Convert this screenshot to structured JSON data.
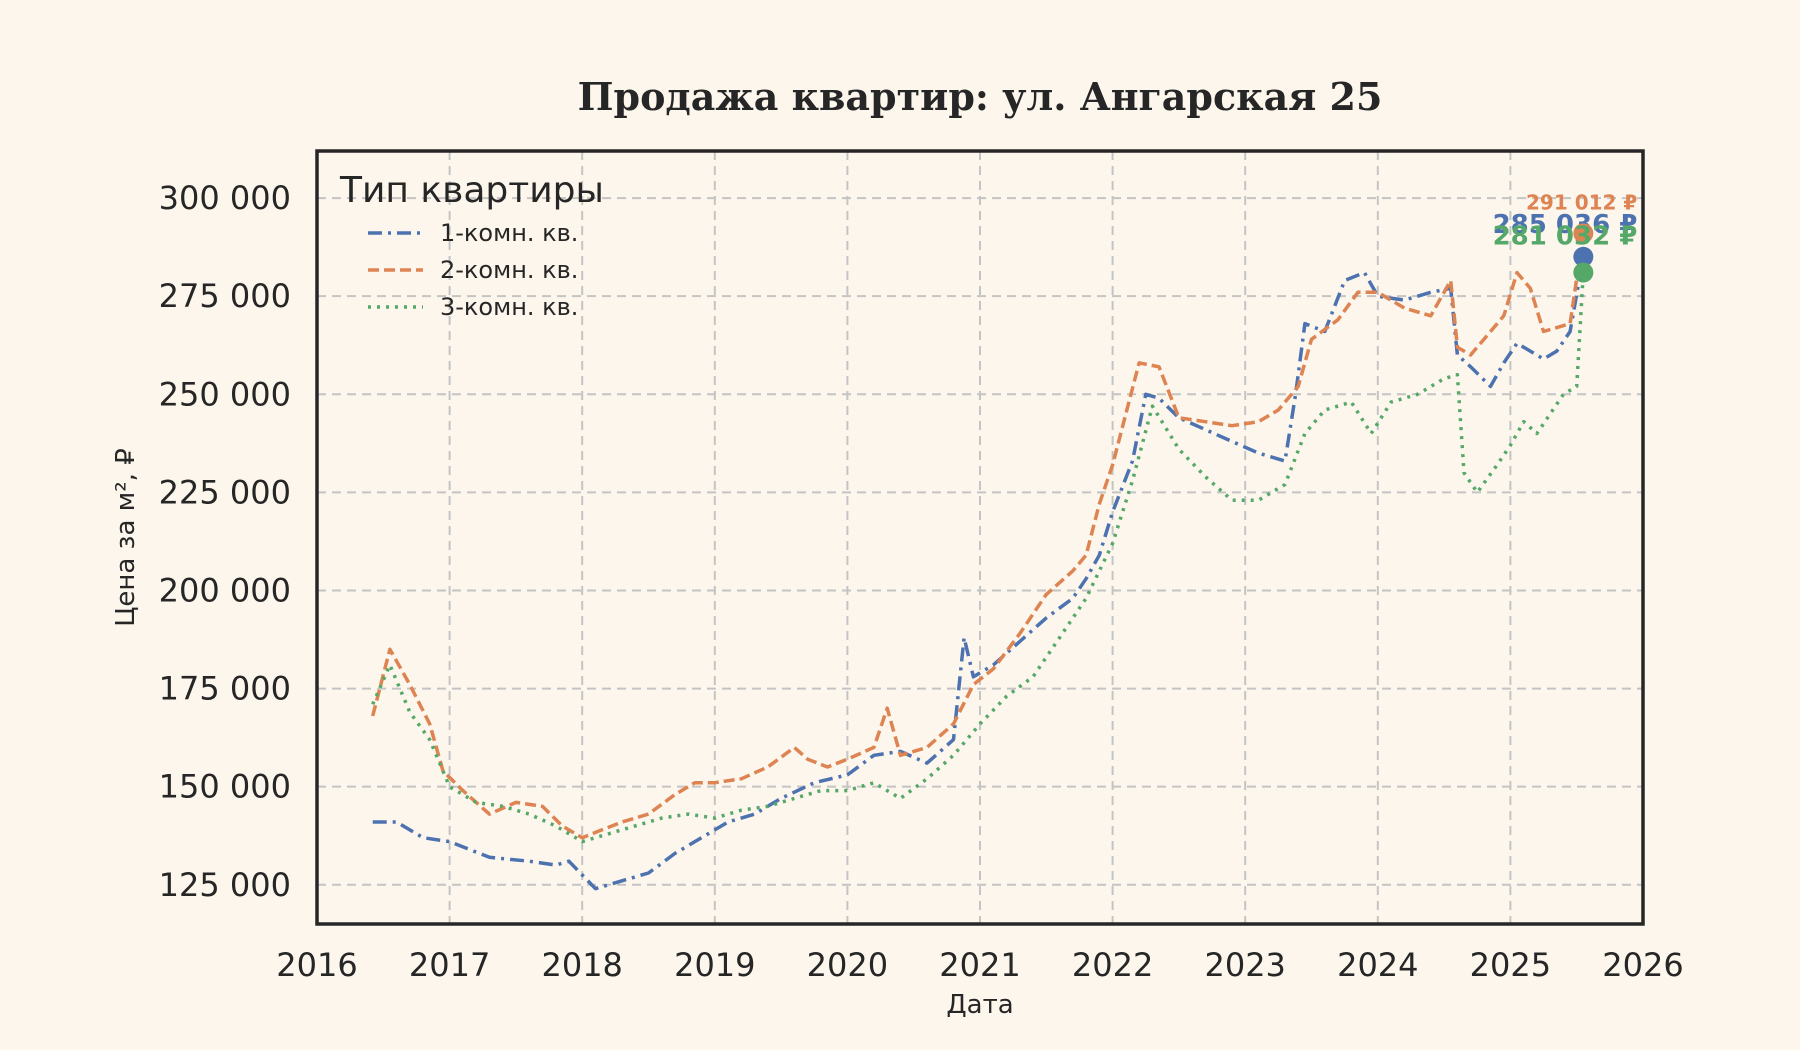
{
  "chart_data": {
    "type": "line",
    "title": "Продажа квартир: ул. Ангарская 25",
    "xlabel": "Дата",
    "ylabel": "Цена за м², ₽",
    "xlim": [
      2016,
      2026
    ],
    "ylim": [
      115000,
      312000
    ],
    "x_ticks": [
      "2016",
      "2017",
      "2018",
      "2019",
      "2020",
      "2021",
      "2022",
      "2023",
      "2024",
      "2025",
      "2026"
    ],
    "y_ticks": [
      {
        "value": 125000,
        "label": "125 000"
      },
      {
        "value": 150000,
        "label": "150 000"
      },
      {
        "value": 175000,
        "label": "175 000"
      },
      {
        "value": 200000,
        "label": "200 000"
      },
      {
        "value": 225000,
        "label": "225 000"
      },
      {
        "value": 250000,
        "label": "250 000"
      },
      {
        "value": 275000,
        "label": "275 000"
      },
      {
        "value": 300000,
        "label": "300 000"
      }
    ],
    "grid": true,
    "legend": {
      "title": "Тип квартиры",
      "placement": "top-left"
    },
    "series": [
      {
        "name": "1-комн. кв.",
        "color": "#4c72b0",
        "dash": "dashdot",
        "x": [
          2016.42,
          2016.6,
          2016.8,
          2017.0,
          2017.3,
          2017.6,
          2017.8,
          2017.9,
          2018.1,
          2018.3,
          2018.5,
          2018.7,
          2018.95,
          2019.1,
          2019.3,
          2019.5,
          2019.75,
          2020.0,
          2020.2,
          2020.4,
          2020.6,
          2020.8,
          2020.88,
          2020.95,
          2021.1,
          2021.3,
          2021.5,
          2021.7,
          2021.8,
          2021.9,
          2022.0,
          2022.15,
          2022.25,
          2022.35,
          2022.5,
          2022.7,
          2022.9,
          2023.1,
          2023.3,
          2023.38,
          2023.45,
          2023.6,
          2023.75,
          2023.9,
          2024.0,
          2024.2,
          2024.4,
          2024.55,
          2024.6,
          2024.7,
          2024.85,
          2024.95,
          2025.05,
          2025.15,
          2025.25,
          2025.35,
          2025.45,
          2025.55
        ],
        "y": [
          141000,
          141000,
          137000,
          136000,
          132000,
          131000,
          130000,
          131000,
          124000,
          126000,
          128000,
          133000,
          138000,
          141000,
          143000,
          147000,
          151000,
          153000,
          158000,
          159000,
          156000,
          162000,
          188000,
          178000,
          181000,
          187000,
          193000,
          198000,
          203000,
          209000,
          220000,
          233000,
          250000,
          249000,
          244000,
          241000,
          238000,
          235000,
          233000,
          250000,
          268000,
          266000,
          279000,
          281000,
          275000,
          274000,
          276000,
          277000,
          260000,
          257000,
          252000,
          258000,
          263000,
          261000,
          259000,
          261000,
          266000,
          285036
        ]
      },
      {
        "name": "2-комн. кв.",
        "color": "#dd8452",
        "dash": "dashed",
        "x": [
          2016.42,
          2016.55,
          2016.7,
          2016.85,
          2016.95,
          2017.1,
          2017.3,
          2017.5,
          2017.7,
          2017.85,
          2018.0,
          2018.15,
          2018.3,
          2018.5,
          2018.7,
          2018.85,
          2019.0,
          2019.2,
          2019.4,
          2019.6,
          2019.7,
          2019.85,
          2020.0,
          2020.2,
          2020.3,
          2020.4,
          2020.6,
          2020.8,
          2020.95,
          2021.1,
          2021.3,
          2021.5,
          2021.7,
          2021.8,
          2021.9,
          2022.0,
          2022.2,
          2022.35,
          2022.5,
          2022.7,
          2022.9,
          2023.1,
          2023.25,
          2023.4,
          2023.5,
          2023.7,
          2023.85,
          2024.0,
          2024.2,
          2024.4,
          2024.55,
          2024.6,
          2024.7,
          2024.85,
          2024.95,
          2025.05,
          2025.15,
          2025.25,
          2025.35,
          2025.45,
          2025.55
        ],
        "y": [
          168000,
          185000,
          176000,
          166000,
          154000,
          149000,
          143000,
          146000,
          145000,
          140000,
          137000,
          139000,
          141000,
          143000,
          148000,
          151000,
          151000,
          152000,
          155000,
          160000,
          157000,
          155000,
          157000,
          160000,
          170000,
          158000,
          160000,
          166000,
          176000,
          180000,
          189000,
          199000,
          205000,
          209000,
          222000,
          232000,
          258000,
          257000,
          244000,
          243000,
          242000,
          243000,
          246000,
          252000,
          264000,
          269000,
          276000,
          276000,
          272000,
          270000,
          279000,
          262000,
          260000,
          266000,
          270000,
          281000,
          277000,
          266000,
          267000,
          268000,
          291012
        ]
      },
      {
        "name": "3-комн. кв.",
        "color": "#55a868",
        "dash": "dotted",
        "x": [
          2016.42,
          2016.55,
          2016.7,
          2016.85,
          2017.0,
          2017.2,
          2017.4,
          2017.6,
          2017.8,
          2018.0,
          2018.2,
          2018.4,
          2018.6,
          2018.8,
          2019.0,
          2019.2,
          2019.4,
          2019.6,
          2019.8,
          2020.0,
          2020.2,
          2020.4,
          2020.6,
          2020.8,
          2021.0,
          2021.2,
          2021.4,
          2021.6,
          2021.8,
          2022.0,
          2022.15,
          2022.3,
          2022.5,
          2022.7,
          2022.9,
          2023.1,
          2023.3,
          2023.45,
          2023.6,
          2023.8,
          2023.95,
          2024.1,
          2024.3,
          2024.5,
          2024.6,
          2024.65,
          2024.75,
          2024.9,
          2025.0,
          2025.1,
          2025.2,
          2025.3,
          2025.4,
          2025.5,
          2025.55
        ],
        "y": [
          171000,
          181000,
          169000,
          162000,
          150000,
          146000,
          145000,
          143000,
          140000,
          136000,
          138000,
          140000,
          142000,
          143000,
          142000,
          144000,
          145000,
          147000,
          149000,
          149000,
          151000,
          147000,
          152000,
          158000,
          166000,
          173000,
          178000,
          188000,
          198000,
          212000,
          228000,
          247000,
          236000,
          229000,
          223000,
          223000,
          227000,
          240000,
          246000,
          248000,
          240000,
          248000,
          250000,
          254000,
          255000,
          230000,
          225000,
          232000,
          237000,
          243000,
          240000,
          245000,
          250000,
          252000,
          281032
        ]
      }
    ],
    "end_labels": [
      {
        "series": "1-комн. кв.",
        "text": "285 036 ₽"
      },
      {
        "series": "2-комн. кв.",
        "text": "291 012 ₽"
      },
      {
        "series": "3-комн. кв.",
        "text": "281 032 ₽"
      }
    ]
  }
}
